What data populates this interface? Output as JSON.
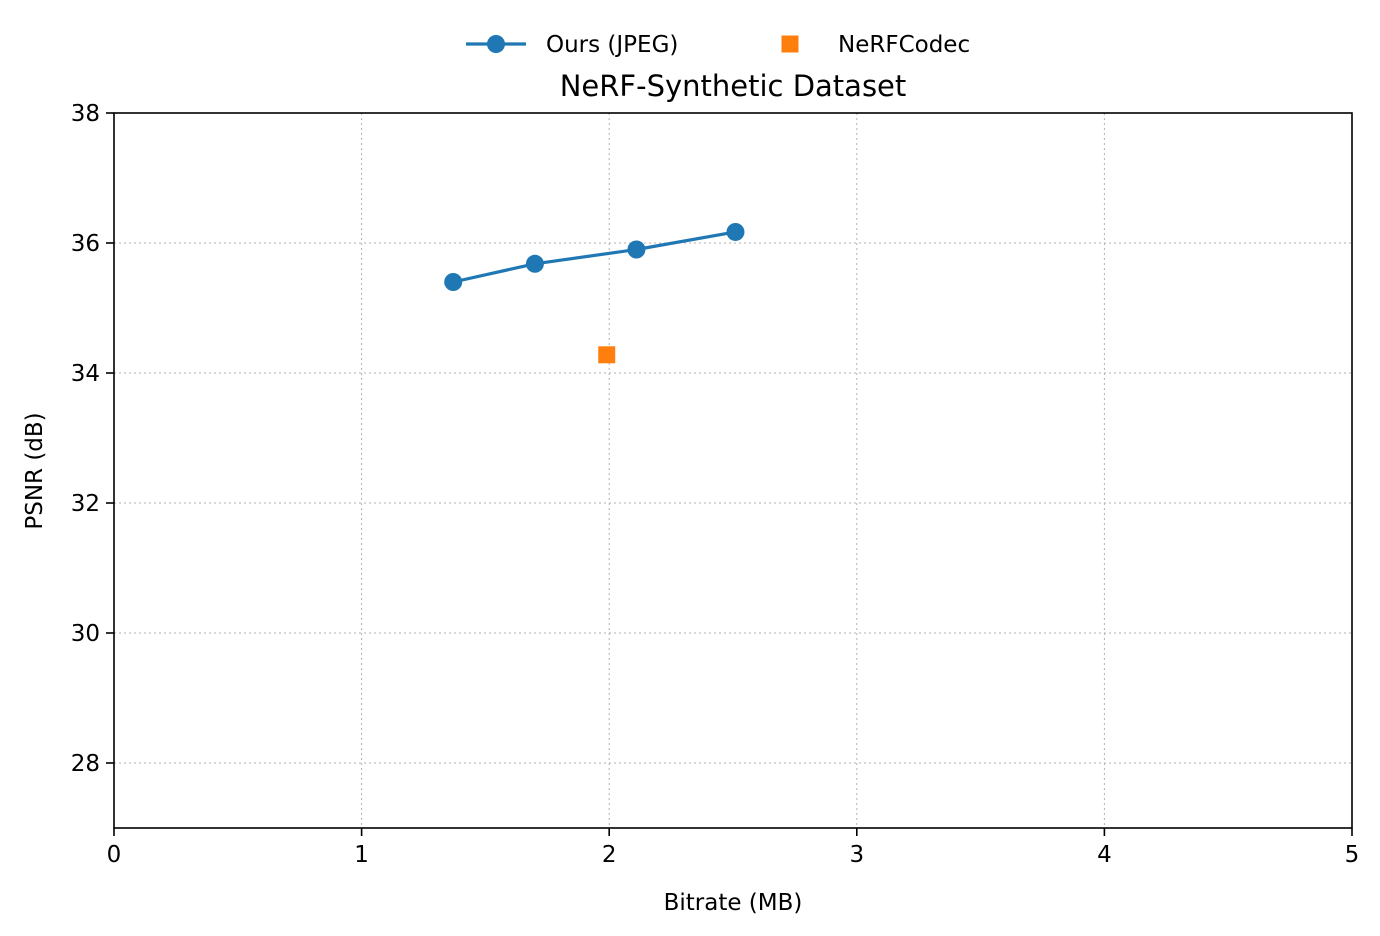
{
  "chart_data": {
    "type": "line",
    "title": "NeRF-Synthetic Dataset",
    "xlabel": "Bitrate (MB)",
    "ylabel": "PSNR (dB)",
    "xlim": [
      0,
      5
    ],
    "ylim": [
      27,
      38
    ],
    "xticks": [
      0,
      1,
      2,
      3,
      4,
      5
    ],
    "yticks": [
      28,
      30,
      32,
      34,
      36,
      38
    ],
    "grid": true,
    "legend_position": "top-center",
    "series": [
      {
        "name": "Ours (JPEG)",
        "kind": "line",
        "marker": "circle",
        "color": "#1f77b4",
        "points": [
          {
            "x": 1.37,
            "y": 35.4
          },
          {
            "x": 1.7,
            "y": 35.68
          },
          {
            "x": 2.11,
            "y": 35.9
          },
          {
            "x": 2.51,
            "y": 36.17
          }
        ]
      },
      {
        "name": "NeRFCodec",
        "kind": "scatter",
        "marker": "square",
        "color": "#ff7f0e",
        "points": [
          {
            "x": 1.99,
            "y": 34.28
          }
        ]
      }
    ]
  }
}
